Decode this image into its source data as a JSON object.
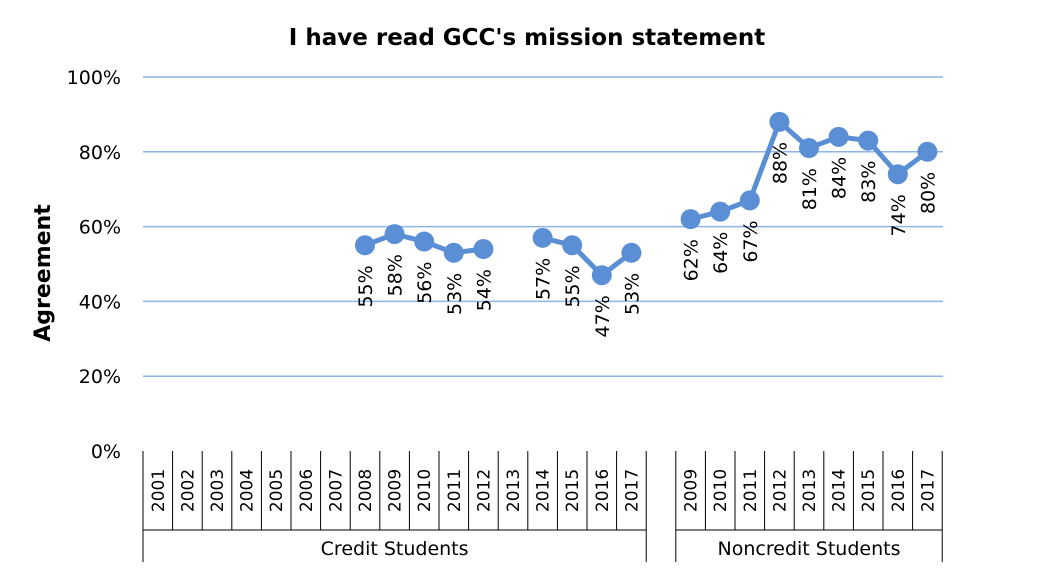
{
  "chart_data": {
    "type": "line",
    "title": "I have read GCC's mission statement",
    "ylabel": "Agreement",
    "ylim": [
      0,
      1
    ],
    "yticks": [
      "0%",
      "20%",
      "40%",
      "60%",
      "80%",
      "100%"
    ],
    "grid": true,
    "series_color": "#5b8fd5",
    "groups": [
      {
        "name": "Credit Students",
        "categories": [
          "2001",
          "2002",
          "2003",
          "2004",
          "2005",
          "2006",
          "2007",
          "2008",
          "2009",
          "2010",
          "2011",
          "2012",
          "2013",
          "2014",
          "2015",
          "2016",
          "2017"
        ],
        "values": [
          null,
          null,
          null,
          null,
          null,
          null,
          null,
          0.55,
          0.58,
          0.56,
          0.53,
          0.54,
          null,
          0.57,
          0.55,
          0.47,
          0.53
        ],
        "labels": [
          "",
          "",
          "",
          "",
          "",
          "",
          "",
          "55%",
          "58%",
          "56%",
          "53%",
          "54%",
          "",
          "57%",
          "55%",
          "47%",
          "53%"
        ]
      },
      {
        "name": "Noncredit Students",
        "categories": [
          "2009",
          "2010",
          "2011",
          "2012",
          "2013",
          "2014",
          "2015",
          "2016",
          "2017"
        ],
        "values": [
          0.62,
          0.64,
          0.67,
          0.88,
          0.81,
          0.84,
          0.83,
          0.74,
          0.8
        ],
        "labels": [
          "62%",
          "64%",
          "67%",
          "88%",
          "81%",
          "84%",
          "83%",
          "74%",
          "80%"
        ]
      }
    ]
  }
}
